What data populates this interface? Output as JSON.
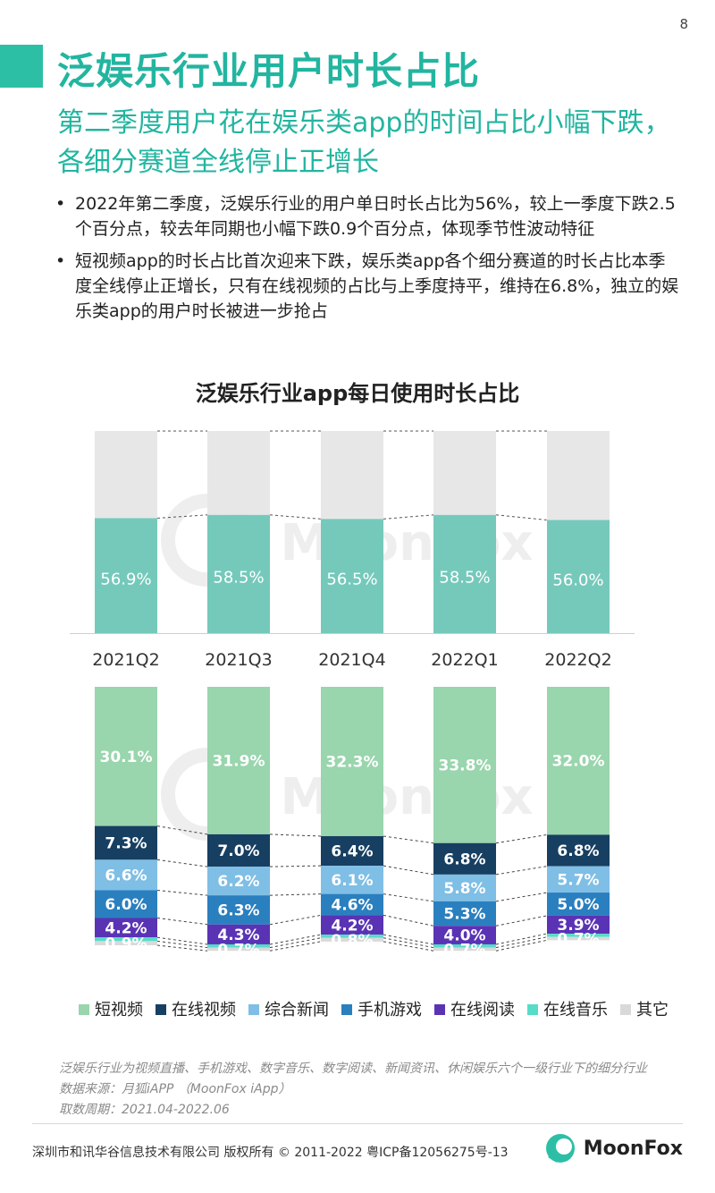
{
  "page_number": "8",
  "title": "泛娱乐行业用户时长占比",
  "subtitle": "第二季度用户花在娱乐类app的时间占比小幅下跌，各细分赛道全线停止正增长",
  "bullets": [
    "2022年第二季度，泛娱乐行业的用户单日时长占比为56%，较上一季度下跌2.5个百分点，较去年同期也小幅下跌0.9个百分点，体现季节性波动特征",
    "短视频app的时长占比首次迎来下跌，娱乐类app各个细分赛道的时长占比本季度全线停止正增长，只有在线视频的占比与上季度持平，维持在6.8%，独立的娱乐类app的用户时长被进一步抢占"
  ],
  "watermark": "MoonFox",
  "colors": {
    "teal": "#75c9bb",
    "grey": "#e7e7e7",
    "short_video": "#99d5ad",
    "online_video": "#173f61",
    "news": "#7fbee5",
    "game": "#2a7fbf",
    "reading": "#5a33b5",
    "music": "#56dcc8",
    "other": "#d9d9d9"
  },
  "chart_data": [
    {
      "type": "bar",
      "title": "泛娱乐行业app每日使用时长占比",
      "categories": [
        "2021Q2",
        "2021Q3",
        "2021Q4",
        "2022Q1",
        "2022Q2"
      ],
      "values": [
        56.9,
        58.5,
        56.5,
        58.5,
        56.0
      ],
      "labels": [
        "56.9%",
        "58.5%",
        "56.5%",
        "58.5%",
        "56.0%"
      ],
      "ylim": [
        0,
        100
      ],
      "stacked_remainder": true
    },
    {
      "type": "bar",
      "stacked": true,
      "categories": [
        "2021Q2",
        "2021Q3",
        "2021Q4",
        "2022Q1",
        "2022Q2"
      ],
      "series": [
        {
          "name": "短视频",
          "color_key": "short_video",
          "values": [
            30.1,
            31.9,
            32.3,
            33.8,
            32.0
          ],
          "labels": [
            "30.1%",
            "31.9%",
            "32.3%",
            "33.8%",
            "32.0%"
          ]
        },
        {
          "name": "在线视频",
          "color_key": "online_video",
          "values": [
            7.3,
            7.0,
            6.4,
            6.8,
            6.8
          ],
          "labels": [
            "7.3%",
            "7.0%",
            "6.4%",
            "6.8%",
            "6.8%"
          ]
        },
        {
          "name": "综合新闻",
          "color_key": "news",
          "values": [
            6.6,
            6.2,
            6.1,
            5.8,
            5.7
          ],
          "labels": [
            "6.6%",
            "6.2%",
            "6.1%",
            "5.8%",
            "5.7%"
          ]
        },
        {
          "name": "手机游戏",
          "color_key": "game",
          "values": [
            6.0,
            6.3,
            4.6,
            5.3,
            5.0
          ],
          "labels": [
            "6.0%",
            "6.3%",
            "4.6%",
            "5.3%",
            "5.0%"
          ]
        },
        {
          "name": "在线阅读",
          "color_key": "reading",
          "values": [
            4.2,
            4.3,
            4.2,
            4.0,
            3.9
          ],
          "labels": [
            "4.2%",
            "4.3%",
            "4.2%",
            "4.0%",
            "3.9%"
          ]
        },
        {
          "name": "在线音乐",
          "color_key": "music",
          "values": [
            0.8,
            0.7,
            0.7,
            0.7,
            0.7
          ],
          "labels": [
            "",
            "",
            "",
            "",
            ""
          ]
        },
        {
          "name": "其它",
          "color_key": "other",
          "values": [
            0.9,
            0.7,
            0.8,
            0.7,
            0.7
          ],
          "labels": [
            "0.9%",
            "0.7%",
            "0.8%",
            "0.7%",
            "0.7%"
          ]
        }
      ],
      "legend": "bottom"
    }
  ],
  "footnotes": [
    "泛娱乐行业为视频直播、手机游戏、数字音乐、数字阅读、新闻资讯、休闲娱乐六个一级行业下的细分行业",
    "数据来源：月狐iAPP （MoonFox iApp）",
    "取数周期：2021.04-2022.06"
  ],
  "copyright": "深圳市和讯华谷信息技术有限公司 版权所有 © 2011-2022 粤ICP备12056275号-13",
  "brand_name": "MoonFox"
}
